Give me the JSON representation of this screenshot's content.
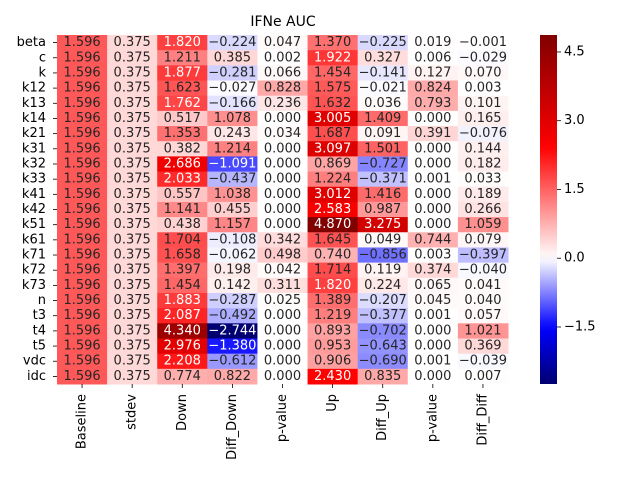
{
  "chart_data": {
    "type": "heatmap",
    "title": "IFNe AUC",
    "columns": [
      "Baseline",
      "stdev",
      "Down",
      "Diff_Down",
      "p-value",
      "Up",
      "Diff_Up",
      "p-value",
      "Diff_Diff"
    ],
    "rows": [
      "beta",
      "c",
      "k",
      "k12",
      "k13",
      "k14",
      "k21",
      "k31",
      "k32",
      "k33",
      "k41",
      "k42",
      "k51",
      "k61",
      "k71",
      "k72",
      "k73",
      "n",
      "t3",
      "t4",
      "t5",
      "vdc",
      "idc"
    ],
    "values": [
      [
        1.596,
        0.375,
        1.82,
        -0.224,
        0.047,
        1.37,
        -0.225,
        0.019,
        -0.001
      ],
      [
        1.596,
        0.375,
        1.211,
        0.385,
        0.002,
        1.922,
        0.327,
        0.006,
        -0.029
      ],
      [
        1.596,
        0.375,
        1.877,
        -0.281,
        0.066,
        1.454,
        -0.141,
        0.127,
        0.07
      ],
      [
        1.596,
        0.375,
        1.623,
        -0.027,
        0.828,
        1.575,
        -0.021,
        0.824,
        0.003
      ],
      [
        1.596,
        0.375,
        1.762,
        -0.166,
        0.236,
        1.632,
        0.036,
        0.793,
        0.101
      ],
      [
        1.596,
        0.375,
        0.517,
        1.078,
        0.0,
        3.005,
        1.409,
        0.0,
        0.165
      ],
      [
        1.596,
        0.375,
        1.353,
        0.243,
        0.034,
        1.687,
        0.091,
        0.391,
        -0.076
      ],
      [
        1.596,
        0.375,
        0.382,
        1.214,
        0.0,
        3.097,
        1.501,
        0.0,
        0.144
      ],
      [
        1.596,
        0.375,
        2.686,
        -1.091,
        0.0,
        0.869,
        -0.727,
        0.0,
        0.182
      ],
      [
        1.596,
        0.375,
        2.033,
        -0.437,
        0.0,
        1.224,
        -0.371,
        0.001,
        0.033
      ],
      [
        1.596,
        0.375,
        0.557,
        1.038,
        0.0,
        3.012,
        1.416,
        0.0,
        0.189
      ],
      [
        1.596,
        0.375,
        1.141,
        0.455,
        0.0,
        2.583,
        0.987,
        0.0,
        0.266
      ],
      [
        1.596,
        0.375,
        0.438,
        1.157,
        0.0,
        4.87,
        3.275,
        0.0,
        1.059
      ],
      [
        1.596,
        0.375,
        1.704,
        -0.108,
        0.342,
        1.645,
        0.049,
        0.744,
        0.079
      ],
      [
        1.596,
        0.375,
        1.658,
        -0.062,
        0.498,
        0.74,
        -0.856,
        0.003,
        -0.397
      ],
      [
        1.596,
        0.375,
        1.397,
        0.198,
        0.042,
        1.714,
        0.119,
        0.374,
        -0.04
      ],
      [
        1.596,
        0.375,
        1.454,
        0.142,
        0.311,
        1.82,
        0.224,
        0.065,
        0.041
      ],
      [
        1.596,
        0.375,
        1.883,
        -0.287,
        0.025,
        1.389,
        -0.207,
        0.045,
        0.04
      ],
      [
        1.596,
        0.375,
        2.087,
        -0.492,
        0.0,
        1.219,
        -0.377,
        0.001,
        0.057
      ],
      [
        1.596,
        0.375,
        4.34,
        -2.744,
        0.0,
        0.893,
        -0.702,
        0.0,
        1.021
      ],
      [
        1.596,
        0.375,
        2.976,
        -1.38,
        0.0,
        0.953,
        -0.643,
        0.0,
        0.369
      ],
      [
        1.596,
        0.375,
        2.208,
        -0.612,
        0.0,
        0.906,
        -0.69,
        0.001,
        -0.039
      ],
      [
        1.596,
        0.375,
        0.774,
        0.822,
        0.0,
        2.43,
        0.835,
        0.0,
        0.007
      ]
    ],
    "colormap": "seismic",
    "vmin": -2.744,
    "vmax": 4.87,
    "center": 0,
    "colorbar_ticks": [
      -1.5,
      0.0,
      1.5,
      3.0,
      4.5
    ],
    "colorbar_tick_labels": [
      "−1.5",
      "0.0",
      "1.5",
      "3.0",
      "4.5"
    ],
    "value_format": "3 decimals",
    "colors": {
      "negative": "#0000ff",
      "zero": "#ffffff",
      "positive": "#ff0000",
      "extreme": "#800000"
    }
  }
}
